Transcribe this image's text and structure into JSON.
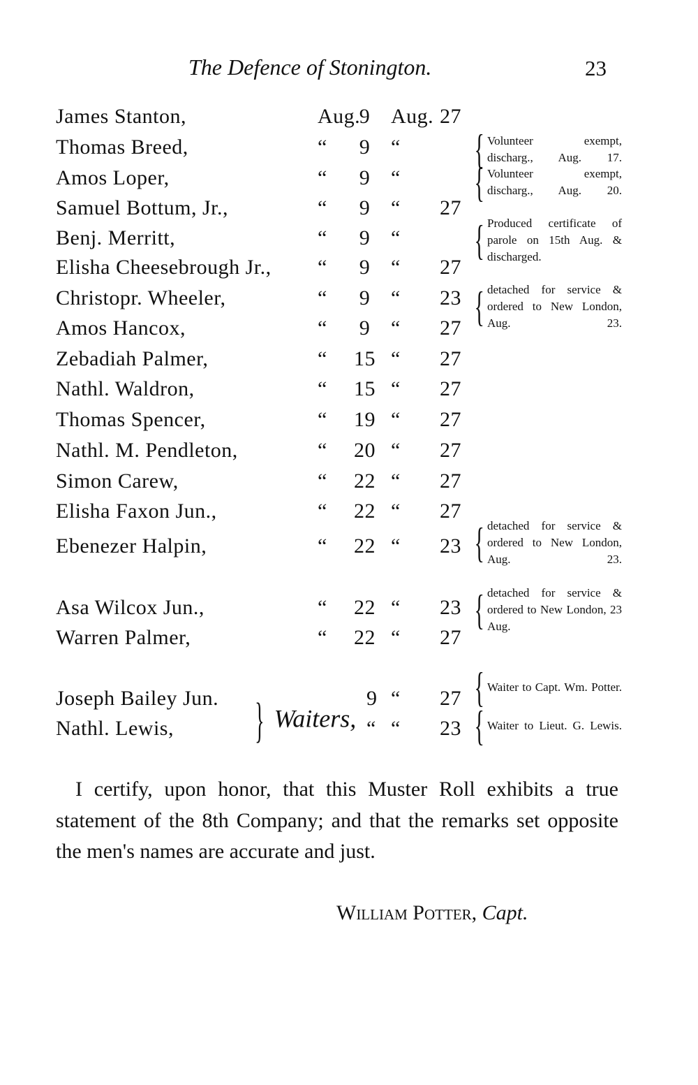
{
  "header": {
    "title": "The Defence of Stonington.",
    "page_number": "23"
  },
  "rows": [
    {
      "name": "James Stanton,",
      "m1": "Aug.",
      "d1": "9",
      "m2": "Aug.",
      "d2": "27"
    },
    {
      "name": "Thomas Breed,",
      "m1": "“",
      "d1": "9",
      "m2": "“",
      "d2": ""
    },
    {
      "name": "Amos Loper,",
      "m1": "“",
      "d1": "9",
      "m2": "“",
      "d2": ""
    },
    {
      "name": "Samuel Bottum, Jr.,",
      "m1": "“",
      "d1": "9",
      "m2": "“",
      "d2": "27"
    },
    {
      "name": "Benj. Merritt,",
      "m1": "“",
      "d1": "9",
      "m2": "“",
      "d2": ""
    },
    {
      "name": "Elisha Cheesebrough Jr.,",
      "m1": "“",
      "d1": "9",
      "m2": "“",
      "d2": "27"
    },
    {
      "name": "Christopr. Wheeler,",
      "m1": "“",
      "d1": "9",
      "m2": "“",
      "d2": "23"
    },
    {
      "name": "Amos Hancox,",
      "m1": "“",
      "d1": "9",
      "m2": "“",
      "d2": "27"
    },
    {
      "name": "Zebadiah Palmer,",
      "m1": "“",
      "d1": "15",
      "m2": "“",
      "d2": "27"
    },
    {
      "name": "Nathl. Waldron,",
      "m1": "“",
      "d1": "15",
      "m2": "“",
      "d2": "27"
    },
    {
      "name": "Thomas Spencer,",
      "m1": "“",
      "d1": "19",
      "m2": "“",
      "d2": "27"
    },
    {
      "name": "Nathl. M. Pendleton,",
      "m1": "“",
      "d1": "20",
      "m2": "“",
      "d2": "27"
    },
    {
      "name": "Simon Carew,",
      "m1": "“",
      "d1": "22",
      "m2": "“",
      "d2": "27"
    },
    {
      "name": "Elisha Faxon Jun.,",
      "m1": "“",
      "d1": "22",
      "m2": "“",
      "d2": "27"
    },
    {
      "name": "Ebenezer Halpin,",
      "m1": "“",
      "d1": "22",
      "m2": "“",
      "d2": "23"
    },
    {
      "name": "Asa Wilcox Jun.,",
      "m1": "“",
      "d1": "22",
      "m2": "“",
      "d2": "23"
    },
    {
      "name": "Warren Palmer,",
      "m1": "“",
      "d1": "22",
      "m2": "“",
      "d2": "27"
    },
    {
      "name": "Joseph Bailey Jun.",
      "m1": "",
      "d1": "9",
      "m2": "“",
      "d2": "27"
    },
    {
      "name": "Nathl. Lewis,",
      "m1": "",
      "d1": "“",
      "m2": "“",
      "d2": "23"
    }
  ],
  "waiters_label": "Waiters,",
  "remarks": [
    "Volunteer exempt, discharg., Aug. 17.",
    "Volunteer exempt, discharg., Aug. 20.",
    "Produced certificate of parole on 15th Aug. & discharged.",
    "detached for service & ordered to New London, Aug. 23.",
    "detached for service & ordered to New London, Aug. 23.",
    "detached for service & ordered to New London, 23 Aug.",
    "Waiter to Capt. Wm. Potter.",
    "Waiter to Lieut. G. Lewis."
  ],
  "certification": "I certify, upon honor, that this Muster Roll exhibits a true statement of the 8th Company; and that the remarks set opposite the men's names are accurate and just.",
  "signature": {
    "name": "William Potter,",
    "title": "Capt."
  }
}
